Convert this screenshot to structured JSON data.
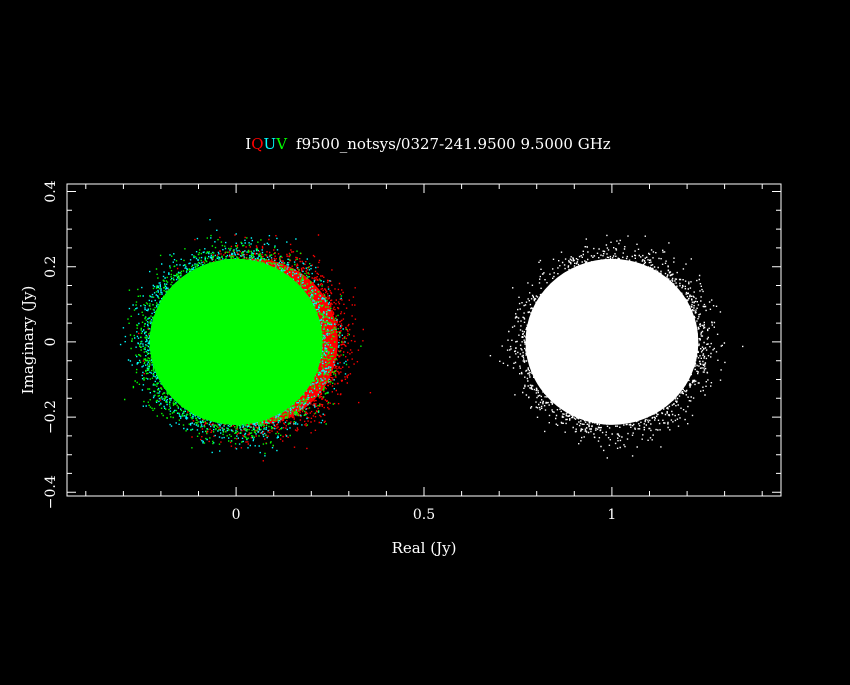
{
  "title": {
    "stokes": [
      {
        "label": "I",
        "color": "#ffffff"
      },
      {
        "label": "Q",
        "color": "#ff0000"
      },
      {
        "label": "U",
        "color": "#00ffff"
      },
      {
        "label": "V",
        "color": "#00ff00"
      }
    ],
    "text": "f9500_notsys/0327-241.9500 9.5000 GHz",
    "color": "#ffffff"
  },
  "chart_data": {
    "type": "scatter",
    "xlabel": "Real (Jy)",
    "ylabel": "Imaginary (Jy)",
    "xlim": [
      -0.45,
      1.45
    ],
    "ylim": [
      -0.41,
      0.42
    ],
    "xticks": [
      0,
      0.5,
      1
    ],
    "xtick_labels": [
      "0",
      "0.5",
      "1"
    ],
    "xminor_step": 0.1,
    "yticks": [
      -0.4,
      -0.2,
      0,
      0.2,
      0.4
    ],
    "ytick_labels": [
      "−0.4",
      "−0.2",
      "0",
      "0.2",
      "0.4"
    ],
    "yminor_step": 0.05,
    "grid": false,
    "legend": "none",
    "series": [
      {
        "color": "#ff0000",
        "center": [
          0.05,
          0.0
        ],
        "radius": [
          0.24,
          0.24
        ]
      },
      {
        "color": "#00ffff",
        "center": [
          0.0,
          0.0
        ],
        "radius": [
          0.25,
          0.24
        ]
      },
      {
        "color": "#00ff00",
        "center": [
          0.0,
          0.0
        ],
        "radius": [
          0.25,
          0.24
        ]
      },
      {
        "color": "#ffffff",
        "center": [
          1.0,
          0.0
        ],
        "radius": [
          0.25,
          0.24
        ]
      }
    ]
  }
}
